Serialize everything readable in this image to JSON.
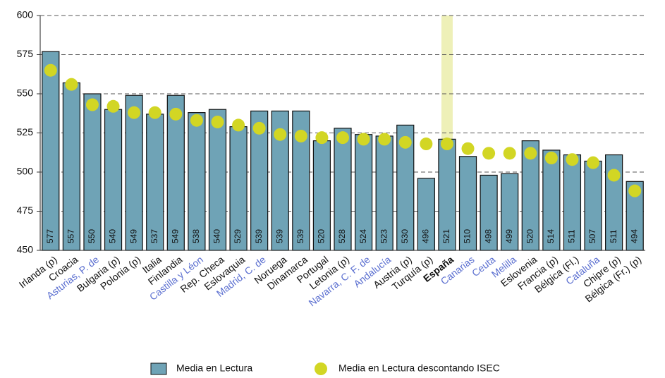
{
  "chart_data": {
    "type": "bar",
    "categories": [
      "Irlanda (p)",
      "Croacia",
      "Asturias, P. de",
      "Bulgaria (p)",
      "Polonia (p)",
      "Italia",
      "Finlandia",
      "Castilla y Léon",
      "Rep. Checa",
      "Eslovaquia",
      "Madrid, C. de",
      "Noruega",
      "Dinamarca",
      "Portugal",
      "Letonia (p)",
      "Navarra, C. F. de",
      "Andalucía",
      "Austria (p)",
      "Turquía (p)",
      "España",
      "Canarias",
      "Ceuta",
      "Melilla",
      "Eslovenia",
      "Francia (p)",
      "Bélgica (Fl.)",
      "Cataluña",
      "Chipre (p)",
      "Bélgica (Fr.) (p)"
    ],
    "category_colors": [
      "#111",
      "#111",
      "#5b6fd0",
      "#111",
      "#111",
      "#111",
      "#111",
      "#5b6fd0",
      "#111",
      "#111",
      "#5b6fd0",
      "#111",
      "#111",
      "#111",
      "#111",
      "#5b6fd0",
      "#5b6fd0",
      "#111",
      "#111",
      "#111",
      "#5b6fd0",
      "#5b6fd0",
      "#5b6fd0",
      "#111",
      "#111",
      "#111",
      "#5b6fd0",
      "#111",
      "#111"
    ],
    "category_bold": [
      false,
      false,
      false,
      false,
      false,
      false,
      false,
      false,
      false,
      false,
      false,
      false,
      false,
      false,
      false,
      false,
      false,
      false,
      false,
      true,
      false,
      false,
      false,
      false,
      false,
      false,
      false,
      false,
      false
    ],
    "highlight_index": 19,
    "highlight_color": "#eef0b8",
    "series": [
      {
        "name": "Media en Lectura",
        "color": "#6fa3b6",
        "values": [
          577,
          557,
          550,
          540,
          549,
          537,
          549,
          538,
          540,
          529,
          539,
          539,
          539,
          520,
          528,
          524,
          523,
          530,
          496,
          521,
          510,
          498,
          499,
          520,
          514,
          511,
          507,
          511,
          494
        ]
      },
      {
        "name": "Media en Lectura descontando ISEC",
        "color": "#d2d624",
        "values": [
          565,
          556,
          543,
          542,
          538,
          538,
          537,
          533,
          532,
          530,
          528,
          524,
          523,
          522,
          522,
          521,
          521,
          519,
          518,
          518,
          515,
          512,
          512,
          512,
          509,
          508,
          506,
          498,
          488
        ]
      }
    ],
    "ylim": [
      450,
      600
    ],
    "yticks": [
      450,
      475,
      500,
      525,
      550,
      575,
      600
    ],
    "grid": true
  }
}
